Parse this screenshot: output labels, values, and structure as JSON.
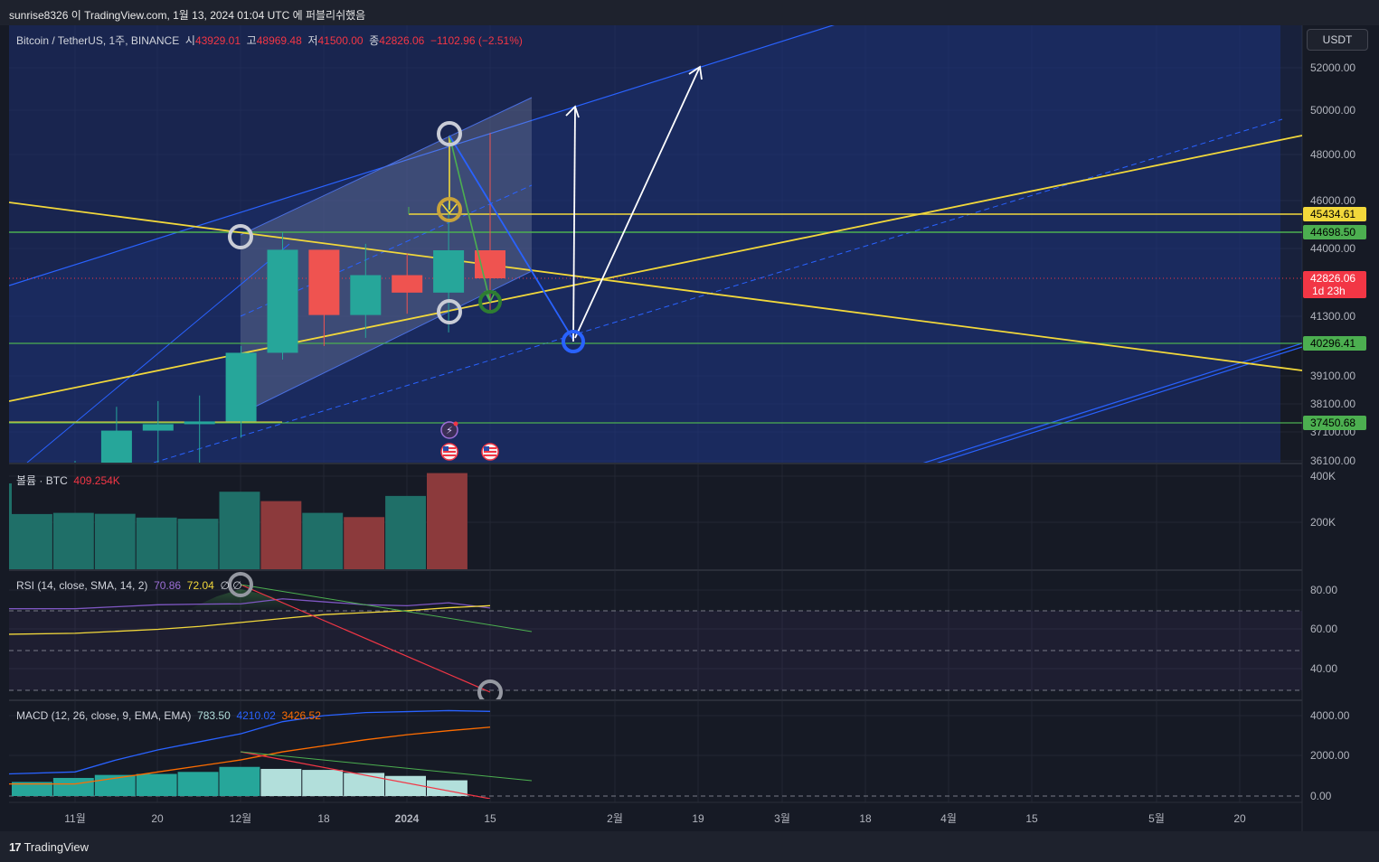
{
  "header": {
    "published": "sunrise8326 이 TradingView.com, 1월 13, 2024 01:04 UTC 에 퍼블리쉬했음"
  },
  "footer": {
    "brand": "TradingView",
    "logo_glyph": "17"
  },
  "currency": "USDT",
  "colors": {
    "up": "#26a69a",
    "down": "#ef5350",
    "yellow": "#f2d83b",
    "green": "#4caf50",
    "blue": "#2962ff",
    "bg": "#161a25"
  },
  "legend": {
    "symbol": "Bitcoin / TetherUS, 1주, BINANCE",
    "o_label": "시",
    "o": "43929.01",
    "h_label": "고",
    "h": "48969.48",
    "l_label": "저",
    "l": "41500.00",
    "c_label": "종",
    "c": "42826.06",
    "change": "−1102.96 (−2.51%)"
  },
  "volume_legend": {
    "label": "볼륨 · BTC",
    "value": "409.254K"
  },
  "rsi_legend": {
    "label": "RSI (14, close, SMA, 14, 2)",
    "rsi": "70.86",
    "sma": "72.04",
    "extra": "∅ ∅"
  },
  "macd_legend": {
    "label": "MACD (12, 26, close, 9, EMA, EMA)",
    "hist": "783.50",
    "macd": "4210.02",
    "signal": "3426.52"
  },
  "chart_data": {
    "type": "candlestick",
    "x_axis_labels": [
      "11월",
      "20",
      "12월",
      "18",
      "2024",
      "15",
      "2월",
      "19",
      "3월",
      "18",
      "4월",
      "15",
      "5월",
      "20"
    ],
    "price_axis_ticks": [
      "52000.00",
      "50000.00",
      "48000.00",
      "46000.00",
      "44000.00",
      "41300.00",
      "39100.00",
      "38100.00",
      "37100.00",
      "36100.00"
    ],
    "price_tags": [
      {
        "value": "45434.61",
        "color": "#f2d83b",
        "text_color": "#000000"
      },
      {
        "value": "44698.50",
        "color": "#4caf50",
        "text_color": "#000000"
      },
      {
        "value": "42826.06",
        "sub": "1d 23h",
        "color": "#f23645",
        "text_color": "#ffffff"
      },
      {
        "value": "40296.41",
        "color": "#4caf50",
        "text_color": "#000000"
      },
      {
        "value": "37450.68",
        "color": "#4caf50",
        "text_color": "#000000"
      }
    ],
    "candles": [
      {
        "week": "2023-10-30",
        "o": 34500,
        "h": 36100,
        "l": 33400,
        "c": 35900
      },
      {
        "week": "2023-11-06",
        "o": 35900,
        "h": 38000,
        "l": 34500,
        "c": 37150
      },
      {
        "week": "2023-11-13",
        "o": 37150,
        "h": 38200,
        "l": 34800,
        "c": 37400
      },
      {
        "week": "2023-11-20",
        "o": 37400,
        "h": 38400,
        "l": 35800,
        "c": 37500
      },
      {
        "week": "2023-11-27",
        "o": 37500,
        "h": 40200,
        "l": 36900,
        "c": 39950
      },
      {
        "week": "2023-12-04",
        "o": 39950,
        "h": 44700,
        "l": 39700,
        "c": 43950
      },
      {
        "week": "2023-12-11",
        "o": 43950,
        "h": 43950,
        "l": 40200,
        "c": 41350
      },
      {
        "week": "2023-12-18",
        "o": 41350,
        "h": 44200,
        "l": 40500,
        "c": 42950
      },
      {
        "week": "2023-12-25",
        "o": 42950,
        "h": 43800,
        "l": 41400,
        "c": 42250
      },
      {
        "week": "2024-01-01",
        "o": 42250,
        "h": 45900,
        "l": 40700,
        "c": 43929.01
      },
      {
        "week": "2024-01-08",
        "o": 43929.01,
        "h": 48969.48,
        "l": 41500,
        "c": 42826.06
      }
    ],
    "volume_axis_ticks": [
      "400K",
      "200K"
    ],
    "volume": [
      {
        "v": 235000,
        "dir": "up"
      },
      {
        "v": 240000,
        "dir": "up"
      },
      {
        "v": 236000,
        "dir": "up"
      },
      {
        "v": 220000,
        "dir": "up"
      },
      {
        "v": 215000,
        "dir": "up"
      },
      {
        "v": 330000,
        "dir": "up"
      },
      {
        "v": 290000,
        "dir": "down"
      },
      {
        "v": 240000,
        "dir": "up"
      },
      {
        "v": 222000,
        "dir": "down"
      },
      {
        "v": 312000,
        "dir": "up"
      },
      {
        "v": 409254,
        "dir": "down"
      }
    ],
    "rsi_axis_ticks": [
      "80.00",
      "60.00",
      "40.00"
    ],
    "rsi": [
      70.5,
      71.5,
      72.5,
      72.8,
      73.0,
      75.5,
      74.0,
      72.5,
      72.0,
      73.5,
      70.86
    ],
    "rsi_sma": [
      58.0,
      59.0,
      60.0,
      61.5,
      63.5,
      65.5,
      67.5,
      68.5,
      69.5,
      71.0,
      72.04
    ],
    "macd_axis_ticks": [
      "4000.00",
      "2000.00",
      "0.00"
    ],
    "macd": [
      1200,
      1800,
      2300,
      2700,
      3100,
      3700,
      4000,
      4150,
      4200,
      4250,
      4210.02
    ],
    "macd_signal": [
      600,
      900,
      1200,
      1500,
      1800,
      2200,
      2500,
      2800,
      3050,
      3250,
      3426.52
    ],
    "macd_hist": [
      700,
      900,
      1050,
      1100,
      1200,
      1450,
      1350,
      1300,
      1150,
      1000,
      783.5
    ]
  }
}
